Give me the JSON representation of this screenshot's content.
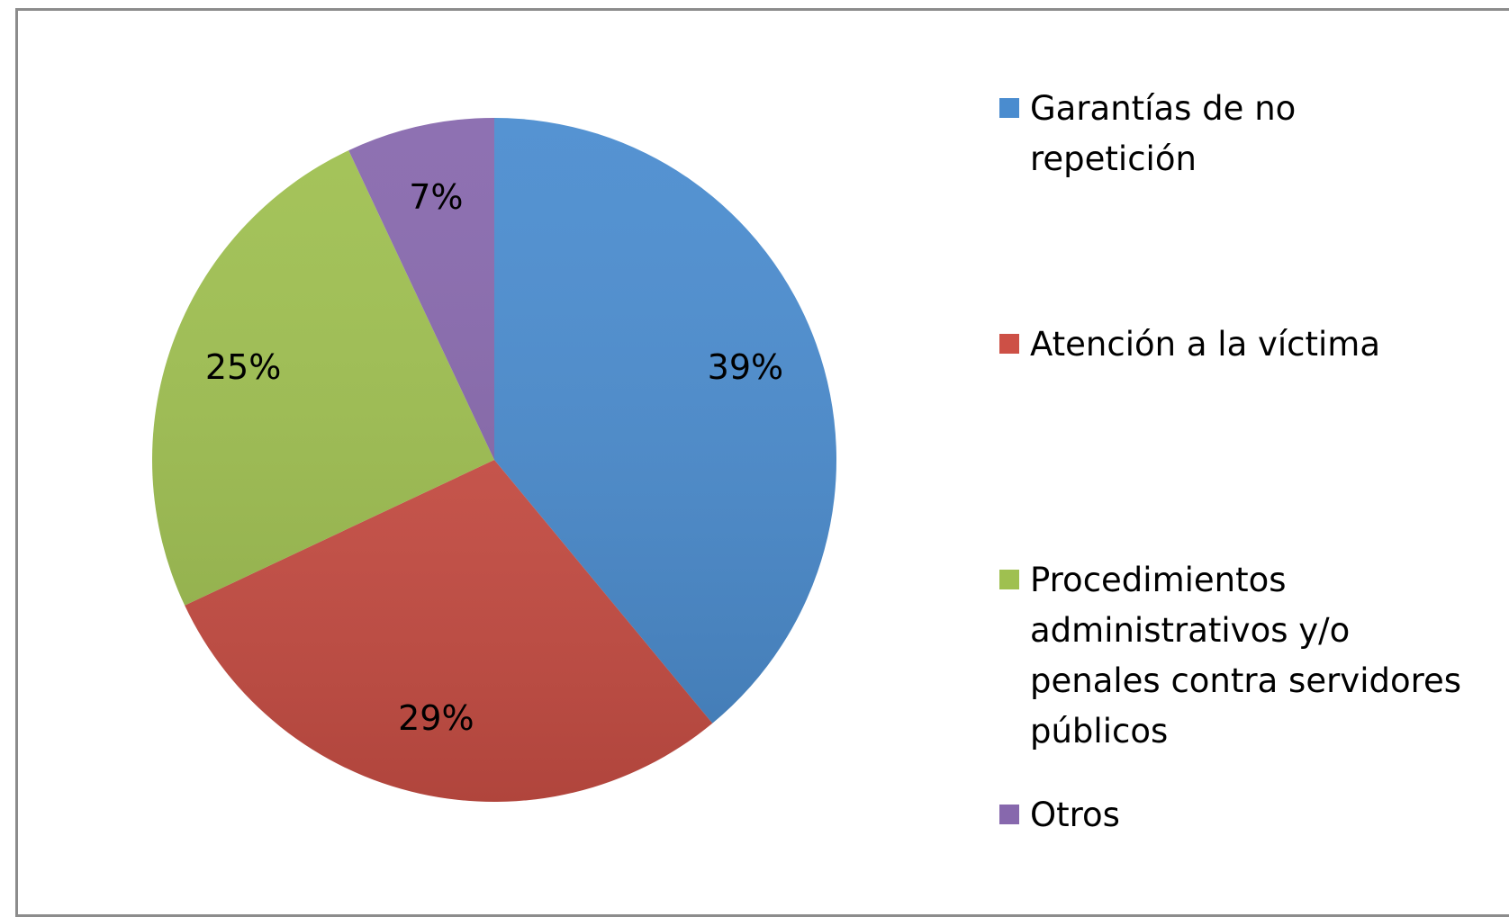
{
  "chart_data": {
    "type": "pie",
    "categories": [
      "Garantías de no repetición",
      "Atención a la víctima",
      "Procedimientos administrativos y/o penales contra servidores públicos",
      "Otros"
    ],
    "values": [
      39,
      29,
      25,
      7
    ],
    "value_labels": [
      "39%",
      "29%",
      "25%",
      "7%"
    ],
    "colors": [
      "#4a8ccf",
      "#cd5046",
      "#9fc050",
      "#8768ad"
    ],
    "legend": "right"
  }
}
